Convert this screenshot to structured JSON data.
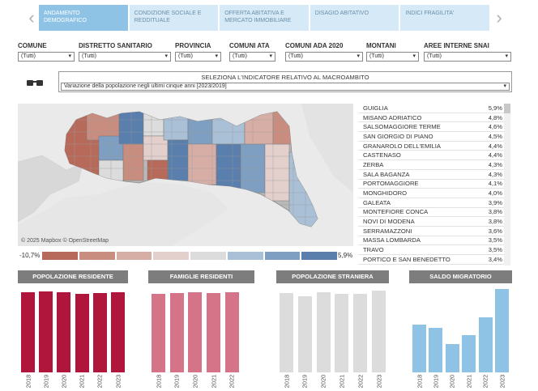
{
  "tabs": [
    {
      "label": "ANDAMENTO DEMOGRAFICO",
      "active": true
    },
    {
      "label": "CONDIZIONE SOCIALE E REDDITUALE",
      "active": false
    },
    {
      "label": "OFFERTA ABITATIVA E MERCATO IMMOBILIARE",
      "active": false
    },
    {
      "label": "DISAGIO ABITATIVO",
      "active": false
    },
    {
      "label": "INDICI FRAGILITA'",
      "active": false
    }
  ],
  "filters": [
    {
      "label": "COMUNE",
      "value": "(Tutti)"
    },
    {
      "label": "DISTRETTO SANITARIO",
      "value": "(Tutti)"
    },
    {
      "label": "PROVINCIA",
      "value": "(Tutti)"
    },
    {
      "label": "COMUNI ATA",
      "value": "(Tutti)"
    },
    {
      "label": "COMUNI ADA 2020",
      "value": "(Tutti)"
    },
    {
      "label": "MONTANI",
      "value": "(Tutti)"
    },
    {
      "label": "AREE INTERNE SNAI",
      "value": "(Tutti)"
    }
  ],
  "indicator": {
    "title": "SELEZIONA L'INDICATORE RELATIVO AL MACROAMBITO",
    "value": "Variazione della popolazione negli ultimi cinque anni [2023/2019]"
  },
  "map": {
    "credit": "© 2025 Mapbox  © OpenStreetMap",
    "legend_min": "-10,7%",
    "legend_max": "5,9%",
    "legend_colors": [
      "#b86a5a",
      "#c98d80",
      "#d7aea6",
      "#e3d0cc",
      "#dcdcdc",
      "#a9c0d6",
      "#7e9fc2",
      "#5a7fad"
    ]
  },
  "ranking": [
    {
      "name": "GUIGLIA",
      "value": "5,9%"
    },
    {
      "name": "MISANO ADRIATICO",
      "value": "4,8%"
    },
    {
      "name": "SALSOMAGGIORE TERME",
      "value": "4,6%"
    },
    {
      "name": "SAN GIORGIO DI PIANO",
      "value": "4,5%"
    },
    {
      "name": "GRANAROLO DELL'EMILIA",
      "value": "4,4%"
    },
    {
      "name": "CASTENASO",
      "value": "4,4%"
    },
    {
      "name": "ZERBA",
      "value": "4,3%"
    },
    {
      "name": "SALA BAGANZA",
      "value": "4,3%"
    },
    {
      "name": "PORTOMAGGIORE",
      "value": "4,1%"
    },
    {
      "name": "MONGHIDORO",
      "value": "4,0%"
    },
    {
      "name": "GALEATA",
      "value": "3,9%"
    },
    {
      "name": "MONTEFIORE CONCA",
      "value": "3,8%"
    },
    {
      "name": "NOVI DI MODENA",
      "value": "3,8%"
    },
    {
      "name": "SERRAMAZZONI",
      "value": "3,6%"
    },
    {
      "name": "MASSA LOMBARDA",
      "value": "3,5%"
    },
    {
      "name": "TRAVO",
      "value": "3,5%"
    },
    {
      "name": "PORTICO E SAN BENEDETTO",
      "value": "3,4%"
    }
  ],
  "panels": [
    {
      "title": "POPOLAZIONE RESIDENTE",
      "color": "#b0163b"
    },
    {
      "title": "FAMIGLIE RESIDENTI",
      "color": "#d57489"
    },
    {
      "title": "POPOLAZIONE STRANIERA",
      "color": "#dcdcdc"
    },
    {
      "title": "SALDO MIGRATORIO",
      "color": "#8fc3e6"
    }
  ],
  "chart_data": [
    {
      "type": "bar",
      "title": "POPOLAZIONE RESIDENTE",
      "categories": [
        "2018",
        "2019",
        "2020",
        "2021",
        "2022",
        "2023"
      ],
      "values": [
        0.96,
        0.97,
        0.96,
        0.94,
        0.95,
        0.96
      ]
    },
    {
      "type": "bar",
      "title": "FAMIGLIE RESIDENTI",
      "categories": [
        "2018",
        "2019",
        "2020",
        "2021",
        "2022"
      ],
      "values": [
        0.94,
        0.95,
        0.96,
        0.95,
        0.96
      ]
    },
    {
      "type": "bar",
      "title": "POPOLAZIONE STRANIERA",
      "categories": [
        "2018",
        "2019",
        "2020",
        "2021",
        "2022",
        "2023"
      ],
      "values": [
        0.95,
        0.91,
        0.96,
        0.94,
        0.94,
        0.98
      ]
    },
    {
      "type": "bar",
      "title": "SALDO MIGRATORIO",
      "categories": [
        "2018",
        "2019",
        "2020",
        "2021",
        "2022",
        "2023"
      ],
      "values": [
        0.57,
        0.53,
        0.34,
        0.45,
        0.66,
        1.0
      ]
    }
  ]
}
